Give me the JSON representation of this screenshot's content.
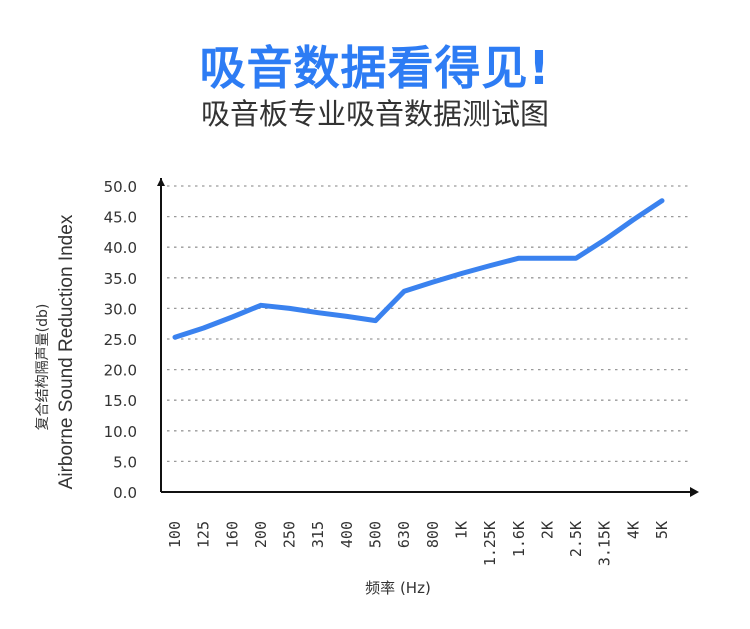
{
  "header": {
    "title": "吸音数据看得见!",
    "subtitle": "吸音板专业吸音数据测试图"
  },
  "colors": {
    "title": "#2d7cf4",
    "line": "#3a82ef",
    "axis": "#111111",
    "grid": "#9a9a9a",
    "text": "#333333"
  },
  "chart_data": {
    "type": "line",
    "title": "",
    "ylabel_line1": "复合结构隔声量(db)",
    "ylabel_line2": "Airborne Sound Reduction Index",
    "xlabel": "频率 (Hz)",
    "ylim": [
      0,
      50
    ],
    "y_ticks": [
      "0.0",
      "5.0",
      "10.0",
      "15.0",
      "20.0",
      "25.0",
      "30.0",
      "35.0",
      "40.0",
      "45.0",
      "50.0"
    ],
    "grid": "horizontal dotted",
    "categories": [
      "100",
      "125",
      "160",
      "200",
      "250",
      "315",
      "400",
      "500",
      "630",
      "800",
      "1K",
      "1.25K",
      "1.6K",
      "2K",
      "2.5K",
      "3.15K",
      "4K",
      "5K"
    ],
    "series": [
      {
        "values": [
          25.3,
          26.8,
          28.6,
          30.5,
          30.0,
          29.3,
          28.7,
          28.0,
          32.8,
          34.3,
          35.7,
          37.0,
          38.2,
          38.2,
          38.2,
          41.2,
          44.5,
          47.6
        ]
      }
    ]
  }
}
